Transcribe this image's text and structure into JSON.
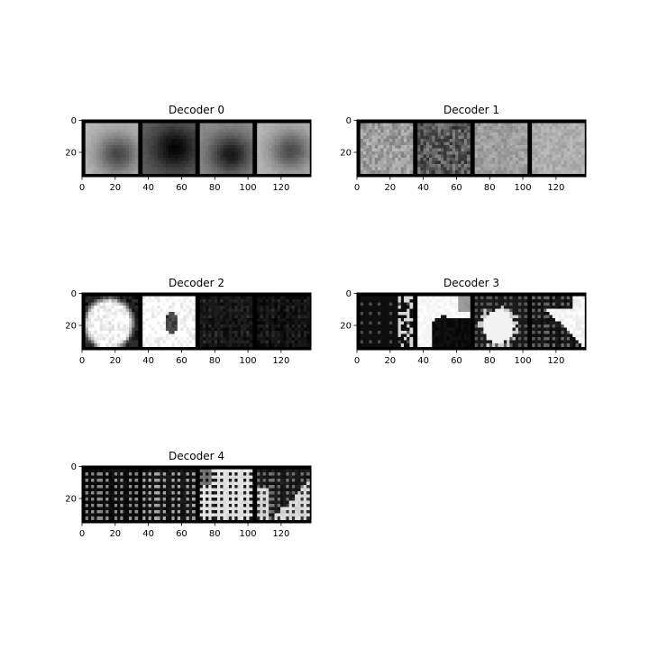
{
  "chart_data": [
    {
      "type": "heatmap",
      "title": "Decoder 0",
      "xticks": [
        0,
        20,
        40,
        60,
        80,
        100,
        120
      ],
      "yticks": [
        0,
        20
      ],
      "xlim": [
        0,
        138
      ],
      "ylim": [
        0,
        35
      ],
      "tile_count": 4,
      "style": "smooth",
      "tiles": [
        {
          "bg": 0.72,
          "spot": [
            0.62,
            0.62
          ],
          "spotv": 0.28,
          "spotr": 0.5
        },
        {
          "bg": 0.38,
          "spot": [
            0.62,
            0.5
          ],
          "spotv": 0.02,
          "spotr": 0.55
        },
        {
          "bg": 0.55,
          "spot": [
            0.6,
            0.62
          ],
          "spotv": 0.1,
          "spotr": 0.5
        },
        {
          "bg": 0.72,
          "spot": [
            0.65,
            0.55
          ],
          "spotv": 0.3,
          "spotr": 0.5
        }
      ]
    },
    {
      "type": "heatmap",
      "title": "Decoder 1",
      "xticks": [
        0,
        20,
        40,
        60,
        80,
        100,
        120
      ],
      "yticks": [
        0,
        20
      ],
      "xlim": [
        0,
        138
      ],
      "ylim": [
        0,
        35
      ],
      "tile_count": 4,
      "style": "noisy-gray",
      "tiles": [
        {
          "bg": 0.62,
          "noise": 0.12
        },
        {
          "bg": 0.35,
          "noise": 0.18
        },
        {
          "bg": 0.62,
          "noise": 0.08
        },
        {
          "bg": 0.68,
          "noise": 0.06
        }
      ]
    },
    {
      "type": "heatmap",
      "title": "Decoder 2",
      "xticks": [
        0,
        20,
        40,
        60,
        80,
        100,
        120
      ],
      "yticks": [
        0,
        20
      ],
      "xlim": [
        0,
        138
      ],
      "ylim": [
        0,
        35
      ],
      "tile_count": 4,
      "style": "blob",
      "tiles": [
        {
          "bg": 0.1,
          "blob": [
            0.45,
            0.55
          ],
          "blobr": 0.42,
          "blobv": 0.95
        },
        {
          "bg": 0.85,
          "blob": [
            0.5,
            0.5
          ],
          "blobr": 0.75,
          "blobv": 0.98,
          "hole": [
            0.55,
            0.55
          ]
        },
        {
          "bg": 0.08,
          "noise": 0.05
        },
        {
          "bg": 0.06,
          "noise": 0.05
        }
      ]
    },
    {
      "type": "heatmap",
      "title": "Decoder 3",
      "xticks": [
        0,
        20,
        40,
        60,
        80,
        100,
        120
      ],
      "yticks": [
        0,
        20
      ],
      "xlim": [
        0,
        138
      ],
      "ylim": [
        0,
        35
      ],
      "tile_count": 4,
      "style": "pattern",
      "tiles": [
        {
          "bg": 0.06,
          "pattern": "dots-right"
        },
        {
          "bg": 0.95,
          "pattern": "arc-dark"
        },
        {
          "bg": 0.1,
          "pattern": "blob-lower"
        },
        {
          "bg": 0.08,
          "pattern": "diag-bright"
        }
      ]
    },
    {
      "type": "heatmap",
      "title": "Decoder 4",
      "xticks": [
        0,
        20,
        40,
        60,
        80,
        100,
        120
      ],
      "yticks": [
        0,
        20
      ],
      "xlim": [
        0,
        138
      ],
      "ylim": [
        0,
        35
      ],
      "tile_count": 4,
      "style": "dotgrid",
      "tiles": [
        {
          "bg": 0.05,
          "dots": 0.55
        },
        {
          "bg": 0.08,
          "dots": 0.65
        },
        {
          "bg": 0.88,
          "dots": 0.05,
          "dark": true
        },
        {
          "bg": 0.1,
          "dots": 0.45,
          "corner": true
        }
      ]
    }
  ]
}
